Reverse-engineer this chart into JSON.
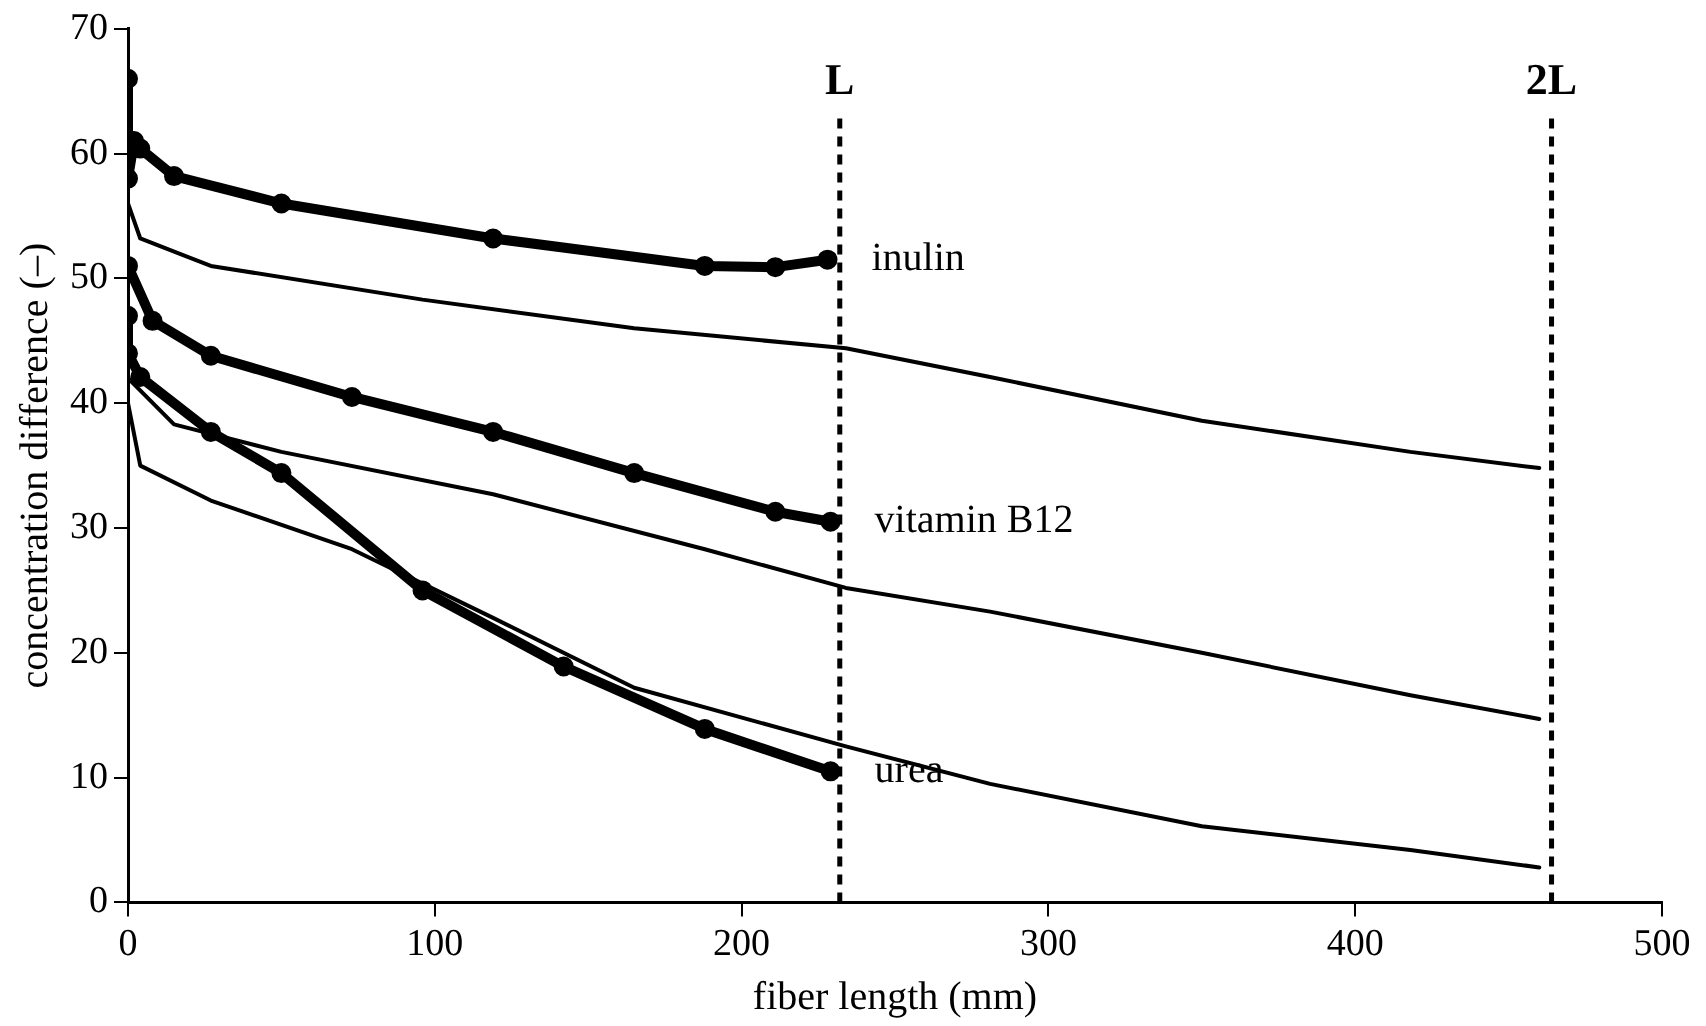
{
  "chart_data": {
    "type": "line",
    "xlabel": "fiber length (mm)",
    "ylabel": "concentration difference (–)",
    "xlim": [
      0,
      500
    ],
    "xticks": [
      0,
      100,
      200,
      300,
      400,
      500
    ],
    "ylim": [
      0,
      70
    ],
    "yticks": [
      0,
      10,
      20,
      30,
      40,
      50,
      60,
      70
    ],
    "grid": false,
    "legend": false,
    "line_style": "solid",
    "series": [
      {
        "name": "inulin",
        "color": "#000000",
        "marker": "circle",
        "x": [
          0,
          0,
          2,
          4,
          15,
          50,
          119,
          188,
          211,
          228
        ],
        "values": [
          66,
          58,
          61,
          60.4,
          58.2,
          56,
          53.2,
          51,
          50.9,
          51.5
        ]
      },
      {
        "color": "#000000",
        "marker": "none",
        "x": [
          0,
          0,
          4,
          27,
          96,
          165,
          234,
          281,
          350,
          418,
          460
        ],
        "values": [
          60,
          56,
          53.2,
          51,
          48.3,
          46,
          44.4,
          42.1,
          38.6,
          36.1,
          34.8
        ]
      },
      {
        "name": "vitamin B12",
        "color": "#000000",
        "marker": "circle",
        "x": [
          0,
          8,
          27,
          73,
          119,
          165,
          211,
          229
        ],
        "values": [
          51,
          46.6,
          43.8,
          40.5,
          37.7,
          34.4,
          31.3,
          30.5
        ]
      },
      {
        "color": "#000000",
        "marker": "none",
        "x": [
          0,
          0,
          15,
          50,
          119,
          188,
          234,
          281,
          350,
          418,
          460
        ],
        "values": [
          48,
          42,
          38.3,
          36.1,
          32.7,
          28.3,
          25.2,
          23.3,
          20,
          16.6,
          14.7
        ]
      },
      {
        "name": "urea",
        "color": "#000000",
        "marker": "circle",
        "x": [
          0,
          0,
          4,
          27,
          50,
          96,
          142,
          188,
          229
        ],
        "values": [
          47,
          44,
          42.1,
          37.7,
          34.4,
          25,
          18.9,
          13.9,
          10.5
        ]
      },
      {
        "color": "#000000",
        "marker": "none",
        "x": [
          0,
          4,
          27,
          73,
          119,
          165,
          234,
          281,
          350,
          418,
          460
        ],
        "values": [
          40,
          35,
          32.2,
          28.3,
          22.8,
          17.2,
          12.5,
          9.5,
          6.1,
          4.2,
          2.8
        ]
      }
    ],
    "ref_lines": [
      {
        "axis": "x",
        "value": 232,
        "label": "L",
        "line_style": "dashed",
        "color": "#000000"
      },
      {
        "axis": "x",
        "value": 464,
        "label": "2L",
        "line_style": "dashed",
        "color": "#000000"
      }
    ]
  }
}
